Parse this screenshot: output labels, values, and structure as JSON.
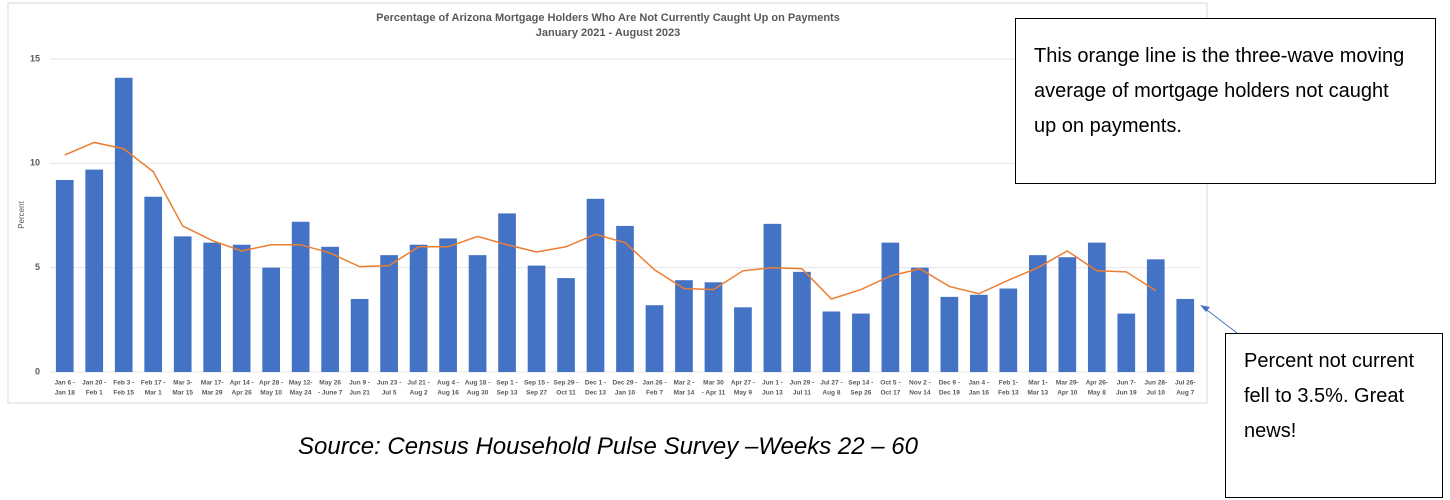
{
  "chart_data": {
    "type": "bar",
    "title": "Percentage of Arizona Mortgage Holders Who Are Not Currently Caught Up on Payments",
    "subtitle": "January 2021 - August 2023",
    "y_label": "Percent",
    "categories": [
      [
        "Jan 6 -",
        "Jan 18"
      ],
      [
        "Jan 20 -",
        "Feb 1"
      ],
      [
        "Feb 3 -",
        "Feb 15"
      ],
      [
        "Feb 17 -",
        "Mar 1"
      ],
      [
        "Mar 3-",
        "Mar 15"
      ],
      [
        "Mar 17-",
        "Mar 29"
      ],
      [
        "Apr 14 -",
        "Apr 26"
      ],
      [
        "Apr 28 -",
        "May 10"
      ],
      [
        "May 12-",
        "May 24"
      ],
      [
        "May 26",
        "- June 7"
      ],
      [
        "Jun 9 -",
        "Jun 21"
      ],
      [
        "Jun 23 -",
        "Jul 5"
      ],
      [
        "Jul 21 -",
        "Aug 2"
      ],
      [
        "Aug 4 -",
        "Aug 16"
      ],
      [
        "Aug 18 -",
        "Aug 30"
      ],
      [
        "Sep 1 -",
        "Sep 13"
      ],
      [
        "Sep 15 -",
        "Sep 27"
      ],
      [
        "Sep 29 -",
        "Oct 11"
      ],
      [
        "Dec 1 -",
        "Dec 13"
      ],
      [
        "Dec 29 -",
        "Jan 10"
      ],
      [
        "Jan 26 -",
        "Feb 7"
      ],
      [
        "Mar 2 -",
        "Mar 14"
      ],
      [
        "Mar 30",
        "- Apr 11"
      ],
      [
        "Apr 27 -",
        "May 9"
      ],
      [
        "Jun 1 -",
        "Jun 13"
      ],
      [
        "Jun 29 -",
        "Jul 11"
      ],
      [
        "Jul 27 -",
        "Aug 8"
      ],
      [
        "Sep 14 -",
        "Sep 26"
      ],
      [
        "Oct 5 -",
        "Oct 17"
      ],
      [
        "Nov 2 -",
        "Nov 14"
      ],
      [
        "Dec 9 -",
        "Dec 19"
      ],
      [
        "Jan 4 -",
        "Jan 16"
      ],
      [
        "Feb 1-",
        "Feb 13"
      ],
      [
        "Mar 1-",
        "Mar 13"
      ],
      [
        "Mar 29-",
        "Apr 10"
      ],
      [
        "Apr 26-",
        "May 8"
      ],
      [
        "Jun 7-",
        "Jun 19"
      ],
      [
        "Jun 28-",
        "Jul 10"
      ],
      [
        "Jul 26-",
        "Aug 7"
      ]
    ],
    "series": [
      {
        "type": "bar",
        "color": "#4472c4",
        "values": [
          9.2,
          9.7,
          14.1,
          8.4,
          6.5,
          6.2,
          6.1,
          5.0,
          7.2,
          6.0,
          3.5,
          5.6,
          6.1,
          6.4,
          5.6,
          7.6,
          5.1,
          4.5,
          8.3,
          7.0,
          3.2,
          4.4,
          4.3,
          3.1,
          7.1,
          4.8,
          2.9,
          2.8,
          6.2,
          5.0,
          3.6,
          3.7,
          4.0,
          5.6,
          5.5,
          6.2,
          2.8,
          5.4,
          3.5
        ]
      },
      {
        "type": "line",
        "color": "#ed7d31",
        "values": [
          10.4,
          11.0,
          10.7,
          9.6,
          7.0,
          6.3,
          5.8,
          6.1,
          6.1,
          5.7,
          5.05,
          5.1,
          6.0,
          6.0,
          6.5,
          6.1,
          5.75,
          6.0,
          6.6,
          6.2,
          4.9,
          4.0,
          3.95,
          4.85,
          5.0,
          4.95,
          3.5,
          3.95,
          4.6,
          4.95,
          4.1,
          3.75,
          4.4,
          5.0,
          5.8,
          4.85,
          4.8,
          3.9,
          null
        ]
      }
    ],
    "ylim": [
      0,
      15
    ],
    "yticks": [
      0,
      5,
      10,
      15
    ],
    "grid": true,
    "annotations": [
      "This orange line is the three-wave moving average of mortgage holders not caught up on payments.",
      "Percent not current fell to 3.5%. Great news!"
    ],
    "source": "Source: Census Household Pulse Survey –Weeks 22 – 60"
  }
}
